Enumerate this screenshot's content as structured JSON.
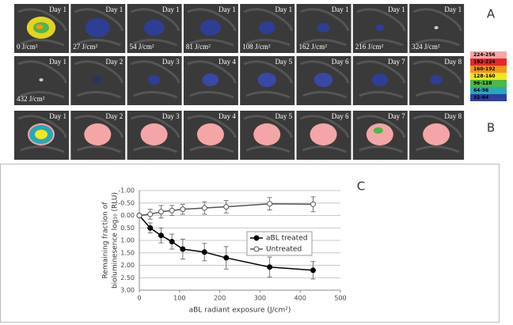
{
  "panel_labels": [
    "A",
    "B",
    "C"
  ],
  "panel_a": {
    "tiles": [
      {
        "day": "Day 1",
        "dose": "0 J/cm²"
      },
      {
        "day": "Day 1",
        "dose": "27 J/cm²"
      },
      {
        "day": "Day 1",
        "dose": "54 J/cm²"
      },
      {
        "day": "Day 1",
        "dose": "81 J/cm²"
      },
      {
        "day": "Day 1",
        "dose": "108 J/cm²"
      },
      {
        "day": "Day 1",
        "dose": "162 J/cm²"
      },
      {
        "day": "Day 1",
        "dose": "216 J/cm²"
      },
      {
        "day": "Day 1",
        "dose": "324 J/cm²"
      },
      {
        "day": "Day 1",
        "dose": "432 J/cm²"
      },
      {
        "day": "Day 2"
      },
      {
        "day": "Day 3"
      },
      {
        "day": "Day 4"
      },
      {
        "day": "Day 5"
      },
      {
        "day": "Day 6"
      },
      {
        "day": "Day 7"
      },
      {
        "day": "Day 8"
      }
    ]
  },
  "panel_b": {
    "tiles": [
      {
        "day": "Day 1"
      },
      {
        "day": "Day 2"
      },
      {
        "day": "Day 3"
      },
      {
        "day": "Day 4"
      },
      {
        "day": "Day 5"
      },
      {
        "day": "Day 6"
      },
      {
        "day": "Day 7"
      },
      {
        "day": "Day 8"
      }
    ]
  },
  "colorbar": [
    {
      "label": "224-256",
      "color": "#f4a6a6"
    },
    {
      "label": "192-224",
      "color": "#e8262a"
    },
    {
      "label": "160-192",
      "color": "#f7941d"
    },
    {
      "label": "128-160",
      "color": "#f5e61e"
    },
    {
      "label": "96-128",
      "color": "#4cb848"
    },
    {
      "label": "64-96",
      "color": "#26a9b8"
    },
    {
      "label": "32-64",
      "color": "#2e3f9e"
    }
  ],
  "chart_data": {
    "type": "line",
    "xlabel": "aBL radiant exposure (J/cm²)",
    "ylabel": [
      "Remaining  fraction of",
      "bioluminesence log₁₀ (RLU)"
    ],
    "x": [
      0,
      27,
      54,
      81,
      108,
      162,
      216,
      324,
      432
    ],
    "series": [
      {
        "name": "aBL treated",
        "color": "#000000",
        "marker_fill": "#000000",
        "values": [
          0,
          0.5,
          0.8,
          1.05,
          1.35,
          1.47,
          1.7,
          2.07,
          2.2
        ],
        "errors": [
          0,
          0.2,
          0.3,
          0.3,
          0.4,
          0.35,
          0.45,
          0.4,
          0.35
        ]
      },
      {
        "name": "Untreated",
        "color": "#555555",
        "marker_fill": "#ffffff",
        "values": [
          0,
          -0.05,
          -0.15,
          -0.2,
          -0.25,
          -0.3,
          -0.35,
          -0.47,
          -0.45
        ],
        "errors": [
          0,
          0.2,
          0.25,
          0.2,
          0.2,
          0.25,
          0.25,
          0.25,
          0.3
        ]
      }
    ],
    "xlim": [
      0,
      500
    ],
    "xticks": [
      0,
      100,
      200,
      300,
      400,
      500
    ],
    "ylim": [
      -1,
      3
    ],
    "y_inverted": true,
    "yticks": [
      {
        "value": -1,
        "label": "-1.00"
      },
      {
        "value": -0.5,
        "label": "-0.50"
      },
      {
        "value": 0,
        "label": "0.00"
      },
      {
        "value": 0.5,
        "label": "0.50"
      },
      {
        "value": 1,
        "label": "1.00"
      },
      {
        "value": 1.5,
        "label": "1.50"
      },
      {
        "value": 2,
        "label": "2.00"
      },
      {
        "value": 2.5,
        "label": "2.50"
      },
      {
        "value": 3,
        "label": "3.00"
      }
    ],
    "grid": true,
    "legend": "right"
  }
}
